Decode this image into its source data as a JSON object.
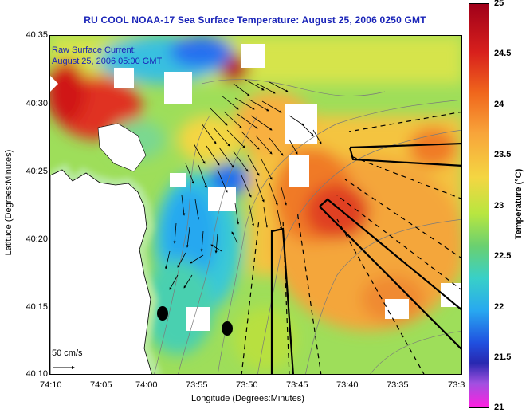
{
  "title": "RU COOL  NOAA-17  Sea Surface Temperature:  August 25, 2006 0250 GMT",
  "legend": {
    "line1": "Raw Surface Current:",
    "line2": "August 25, 2006 05:00 GMT",
    "scale": "50 cm/s"
  },
  "axes": {
    "xlabel": "Longitude (Degrees:Minutes)",
    "ylabel": "Latitude (Degrees:Minutes)",
    "x_ticks": [
      "74:10",
      "74:05",
      "74:00",
      "73:55",
      "73:50",
      "73:45",
      "73:40",
      "73:35",
      "73:3"
    ],
    "y_ticks": [
      "40:35",
      "40:30",
      "40:25",
      "40:20",
      "40:15",
      "40:10"
    ]
  },
  "colorbar": {
    "label": "Temperature (°C)",
    "ticks": [
      "25",
      "24.5",
      "24",
      "23.5",
      "23",
      "22.5",
      "22",
      "21.5",
      "21"
    ],
    "colors": [
      "#a0001a",
      "#d8201c",
      "#f0661c",
      "#f8a43a",
      "#f4d642",
      "#b8e640",
      "#6ad070",
      "#38d0c8",
      "#28a8f0",
      "#2050e0",
      "#2828b0",
      "#a050e0",
      "#ff20e0"
    ]
  }
}
